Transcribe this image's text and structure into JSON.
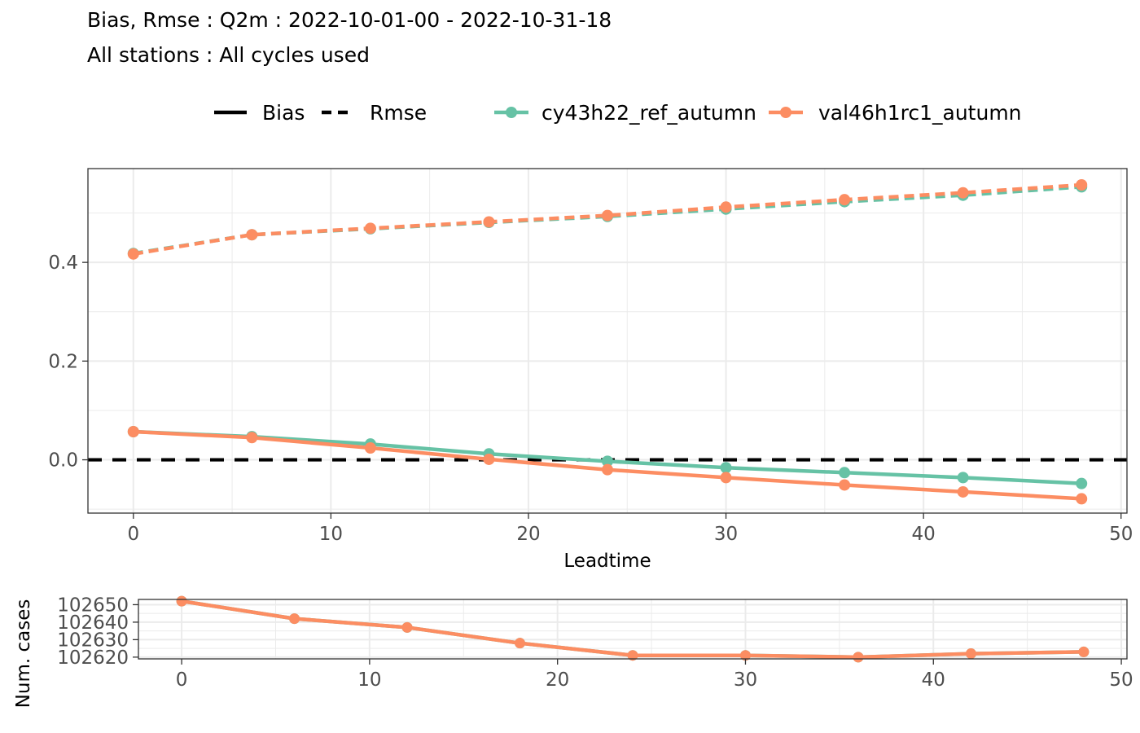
{
  "title": "Bias, Rmse : Q2m : 2022-10-01-00 - 2022-10-31-18",
  "subtitle": "All stations : All cycles used",
  "legend": {
    "linetype_items": [
      {
        "label": "Bias",
        "style": "solid"
      },
      {
        "label": "Rmse",
        "style": "dashed"
      }
    ],
    "model_items": [
      {
        "label": "cy43h22_ref_autumn",
        "color": "#66c2a5"
      },
      {
        "label": "val46h1rc1_autumn",
        "color": "#fc8d62"
      }
    ]
  },
  "chart_data": [
    {
      "type": "line",
      "panel": "scores",
      "xlabel": "Leadtime",
      "ylabel": "",
      "x": [
        0,
        6,
        12,
        18,
        24,
        30,
        36,
        42,
        48
      ],
      "xlim": [
        -2.3,
        50.3
      ],
      "ylim": [
        -0.108,
        0.59
      ],
      "xticks": [
        0,
        10,
        20,
        30,
        40,
        50
      ],
      "yticks": [
        0.0,
        0.2,
        0.4
      ],
      "ytick_labels": [
        "0.0",
        "0.2",
        "0.4"
      ],
      "hline": 0,
      "series": [
        {
          "name": "cy43h22_ref_autumn",
          "score": "Bias",
          "color": "#66c2a5",
          "style": "solid",
          "values": [
            0.057,
            0.047,
            0.032,
            0.012,
            -0.003,
            -0.016,
            -0.026,
            -0.036,
            -0.048
          ]
        },
        {
          "name": "val46h1rc1_autumn",
          "score": "Bias",
          "color": "#fc8d62",
          "style": "solid",
          "values": [
            0.057,
            0.045,
            0.024,
            0.001,
            -0.02,
            -0.036,
            -0.051,
            -0.065,
            -0.079
          ]
        },
        {
          "name": "cy43h22_ref_autumn",
          "score": "Rmse",
          "color": "#66c2a5",
          "style": "dashed",
          "values": [
            0.418,
            0.456,
            0.468,
            0.481,
            0.493,
            0.508,
            0.523,
            0.536,
            0.553
          ]
        },
        {
          "name": "val46h1rc1_autumn",
          "score": "Rmse",
          "color": "#fc8d62",
          "style": "dashed",
          "values": [
            0.417,
            0.456,
            0.469,
            0.482,
            0.495,
            0.512,
            0.527,
            0.541,
            0.557
          ]
        }
      ]
    },
    {
      "type": "line",
      "panel": "cases",
      "xlabel": "",
      "ylabel": "Num. cases",
      "x": [
        0,
        6,
        12,
        18,
        24,
        30,
        36,
        42,
        48
      ],
      "xlim": [
        -2.3,
        50.3
      ],
      "ylim": [
        102619,
        102653
      ],
      "xticks": [
        0,
        10,
        20,
        30,
        40,
        50
      ],
      "yticks": [
        102620,
        102630,
        102640,
        102650
      ],
      "series": [
        {
          "name": "cy43h22_ref_autumn",
          "color": "#66c2a5",
          "values": [
            102652,
            102642,
            102637,
            102628,
            102621,
            102621,
            102620,
            102622,
            102623
          ]
        },
        {
          "name": "val46h1rc1_autumn",
          "color": "#fc8d62",
          "values": [
            102652,
            102642,
            102637,
            102628,
            102621,
            102621,
            102620,
            102622,
            102623
          ]
        }
      ]
    }
  ]
}
